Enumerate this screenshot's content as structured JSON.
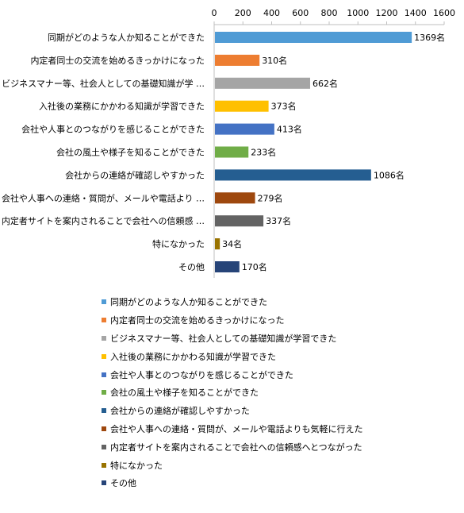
{
  "chart_data": {
    "type": "bar",
    "orientation": "horizontal",
    "categories": [
      "同期がどのような人か知ることができた",
      "内定者同士の交流を始めるきっかけになった",
      "ビジネスマナー等、社会人としての基礎知識が学 …",
      "入社後の業務にかかわる知識が学習できた",
      "会社や人事とのつながりを感じることができた",
      "会社の風土や様子を知ることができた",
      "会社からの連絡が確認しやすかった",
      "会社や人事への連絡・質問が、メールや電話より …",
      "内定者サイトを案内されることで会社への信頼感 …",
      "特になかった",
      "その他"
    ],
    "values": [
      1369,
      310,
      662,
      373,
      413,
      233,
      1086,
      279,
      337,
      34,
      170
    ],
    "value_labels": [
      "1369名",
      "310名",
      "662名",
      "373名",
      "413名",
      "233名",
      "1086名",
      "279名",
      "337名",
      "34名",
      "170名"
    ],
    "colors": [
      "#4f9bd5",
      "#ed7d31",
      "#a5a5a5",
      "#ffc000",
      "#4472c4",
      "#70ad47",
      "#255e91",
      "#9e480e",
      "#636363",
      "#997300",
      "#264478"
    ],
    "xlim": [
      0,
      1600
    ],
    "xticks": [
      "0",
      "200",
      "400",
      "600",
      "800",
      "1000",
      "1200",
      "1400",
      "1600"
    ],
    "xaxis_position": "top",
    "grid": false,
    "legend": {
      "placement": "bottom",
      "entries": [
        "同期がどのような人か知ることができた",
        "内定者同士の交流を始めるきっかけになった",
        "ビジネスマナー等、社会人としての基礎知識が学習できた",
        "入社後の業務にかかわる知識が学習できた",
        "会社や人事とのつながりを感じることができた",
        "会社の風土や様子を知ることができた",
        "会社からの連絡が確認しやすかった",
        "会社や人事への連絡・質問が、メールや電話よりも気軽に行えた",
        "内定者サイトを案内されることで会社への信頼感へとつながった",
        "特になかった",
        "その他"
      ]
    }
  }
}
